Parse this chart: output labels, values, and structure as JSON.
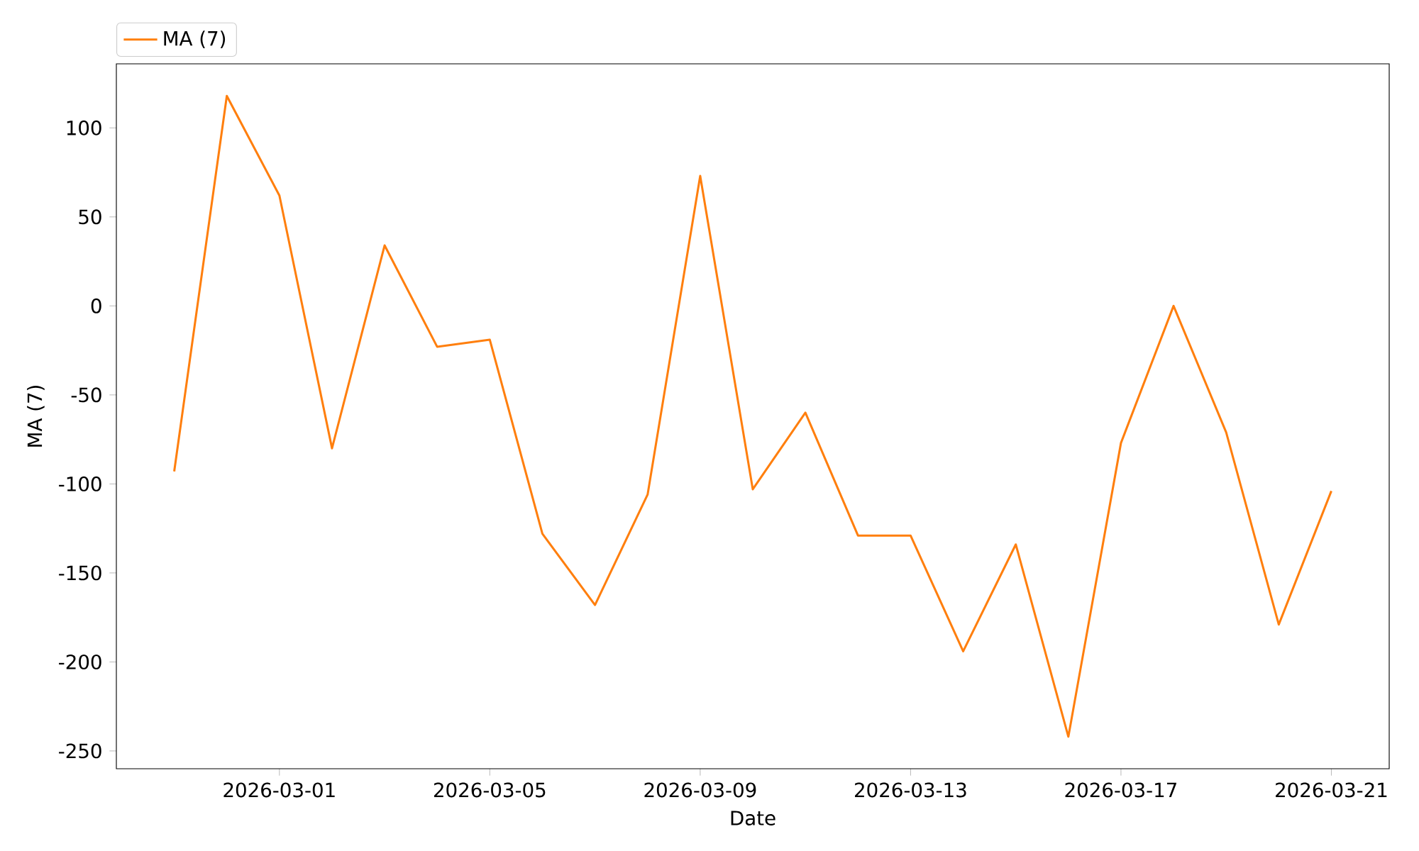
{
  "chart_data": {
    "type": "line",
    "xlabel": "Date",
    "ylabel": "MA (7)",
    "x": [
      "2026-02-27",
      "2026-02-28",
      "2026-03-01",
      "2026-03-02",
      "2026-03-03",
      "2026-03-04",
      "2026-03-05",
      "2026-03-06",
      "2026-03-07",
      "2026-03-08",
      "2026-03-09",
      "2026-03-10",
      "2026-03-11",
      "2026-03-12",
      "2026-03-13",
      "2026-03-14",
      "2026-03-15",
      "2026-03-16",
      "2026-03-17",
      "2026-03-18",
      "2026-03-19",
      "2026-03-20",
      "2026-03-21"
    ],
    "series": [
      {
        "name": "MA (7)",
        "color": "#ff7f0e",
        "values": [
          -93,
          118,
          62,
          -80,
          34,
          -23,
          -19,
          -128,
          -168,
          -106,
          73,
          -103,
          -60,
          -129,
          -129,
          -194,
          -134,
          -242,
          -77,
          0,
          -71,
          -179,
          -104
        ]
      }
    ],
    "xlim": [
      "2026-02-25T21:36",
      "2026-03-22T02:24"
    ],
    "ylim": [
      -260,
      136
    ],
    "xticks": [
      "2026-03-01",
      "2026-03-05",
      "2026-03-09",
      "2026-03-13",
      "2026-03-17",
      "2026-03-21"
    ],
    "yticks": [
      -250,
      -200,
      -150,
      -100,
      -50,
      0,
      50,
      100
    ],
    "grid": false,
    "legend": "top left",
    "marker": "none",
    "line_style": "solid"
  }
}
